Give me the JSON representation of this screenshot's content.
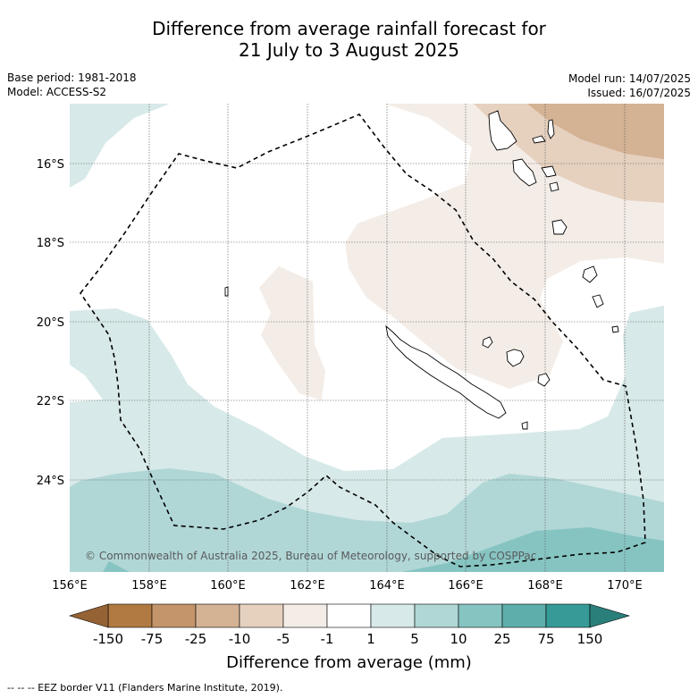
{
  "header": {
    "title_line1": "Difference from average rainfall forecast for",
    "title_line2": "21 July to 3 August 2025",
    "base_period": "Base period: 1981-2018",
    "model": "Model: ACCESS-S2",
    "model_run": "Model run: 14/07/2025",
    "issued": "Issued: 16/07/2025"
  },
  "map": {
    "lon_labels": [
      "156°E",
      "158°E",
      "160°E",
      "162°E",
      "164°E",
      "166°E",
      "168°E",
      "170°E"
    ],
    "lat_labels": [
      "16°S",
      "18°S",
      "20°S",
      "22°S",
      "24°S"
    ],
    "copyright": "© Commonwealth of Australia 2025, Bureau of Meteorology, supported by COSPPac"
  },
  "colorbar": {
    "labels": [
      "-150",
      "-75",
      "-25",
      "-10",
      "-5",
      "-1",
      "1",
      "5",
      "10",
      "25",
      "75",
      "150"
    ],
    "colors": [
      "#b07a42",
      "#c4946a",
      "#d4b294",
      "#e6d1bf",
      "#f4ede7",
      "#ffffff",
      "#d7e9e8",
      "#b0d7d6",
      "#86c4c2",
      "#5eaeac",
      "#369b97"
    ],
    "extend_low_color": "#956333",
    "extend_high_color": "#2a7f7b",
    "title": "Difference from average (mm)"
  },
  "footer": {
    "eez_note": "--  --  -- EEZ border V11 (Flanders Marine Institute, 2019)."
  }
}
